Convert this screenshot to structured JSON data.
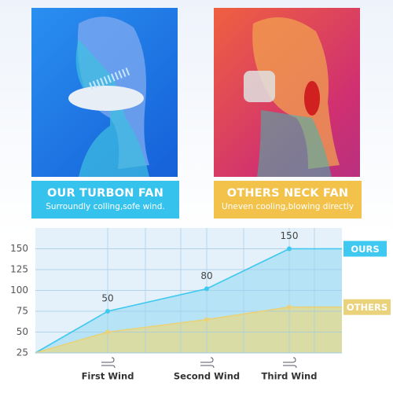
{
  "panels": [
    {
      "heading": "OUR TURBON FAN",
      "subheading": "Surroundly colling,sofe wind."
    },
    {
      "heading": "OTHERS NECK FAN",
      "subheading": "Uneven cooling,blowing directly"
    }
  ],
  "chart_data": {
    "type": "area",
    "categories": [
      null,
      "First Wind",
      "Second Wind",
      "Third Wind"
    ],
    "series": [
      {
        "name": "OURS",
        "color": "#3fc8f0",
        "fill": "#b6e3f5",
        "values": [
          25,
          75,
          102,
          150
        ]
      },
      {
        "name": "OTHERS",
        "color": "#ead27a",
        "fill": "#d9dca4",
        "values": [
          25,
          50,
          65,
          80
        ]
      }
    ],
    "annotations": [
      "50",
      "80",
      "150"
    ],
    "ylim": [
      25,
      175
    ],
    "yticks": [
      25,
      50,
      75,
      100,
      125,
      150
    ],
    "grid": true
  }
}
